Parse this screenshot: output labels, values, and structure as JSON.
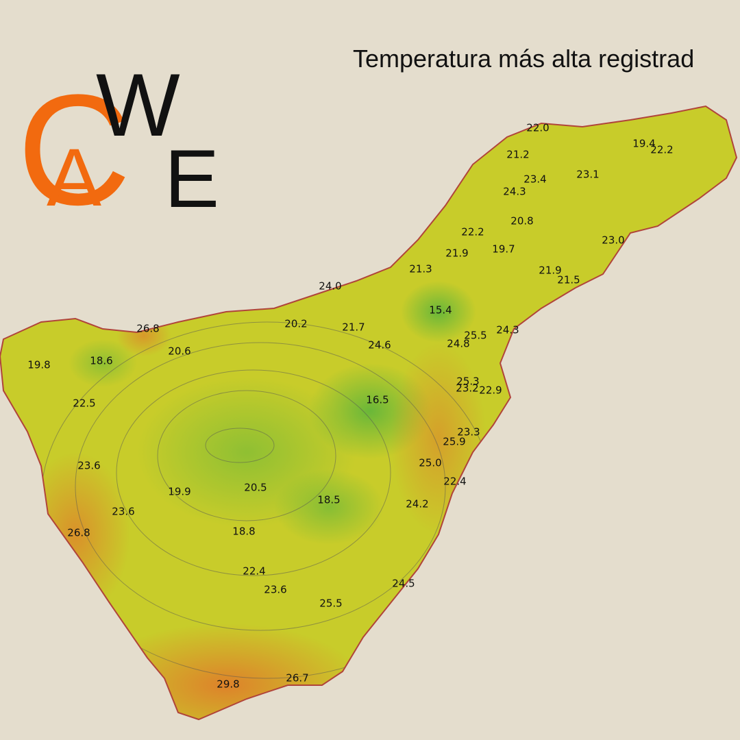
{
  "header": {
    "title": "Temperatura más alta registrad"
  },
  "logo": {
    "letters": [
      "C",
      "A",
      "W",
      "E"
    ]
  },
  "stations": [
    "22.0",
    "19.4",
    "22.2",
    "21.2",
    "23.4",
    "23.1",
    "24.3",
    "20.8",
    "22.2",
    "23.0",
    "21.9",
    "19.7",
    "21.3",
    "21.9",
    "21.5",
    "24.0",
    "15.4",
    "20.2",
    "21.7",
    "24.3",
    "25.5",
    "26.8",
    "24.8",
    "24.6",
    "20.6",
    "19.8",
    "18.6",
    "25.3",
    "23.2",
    "22.9",
    "22.5",
    "16.5",
    "23.3",
    "25.9",
    "25.0",
    "23.6",
    "22.4",
    "19.9",
    "20.5",
    "18.5",
    "24.2",
    "23.6",
    "26.8",
    "18.8",
    "22.4",
    "24.5",
    "23.6",
    "25.5",
    "26.7",
    "29.8"
  ]
}
